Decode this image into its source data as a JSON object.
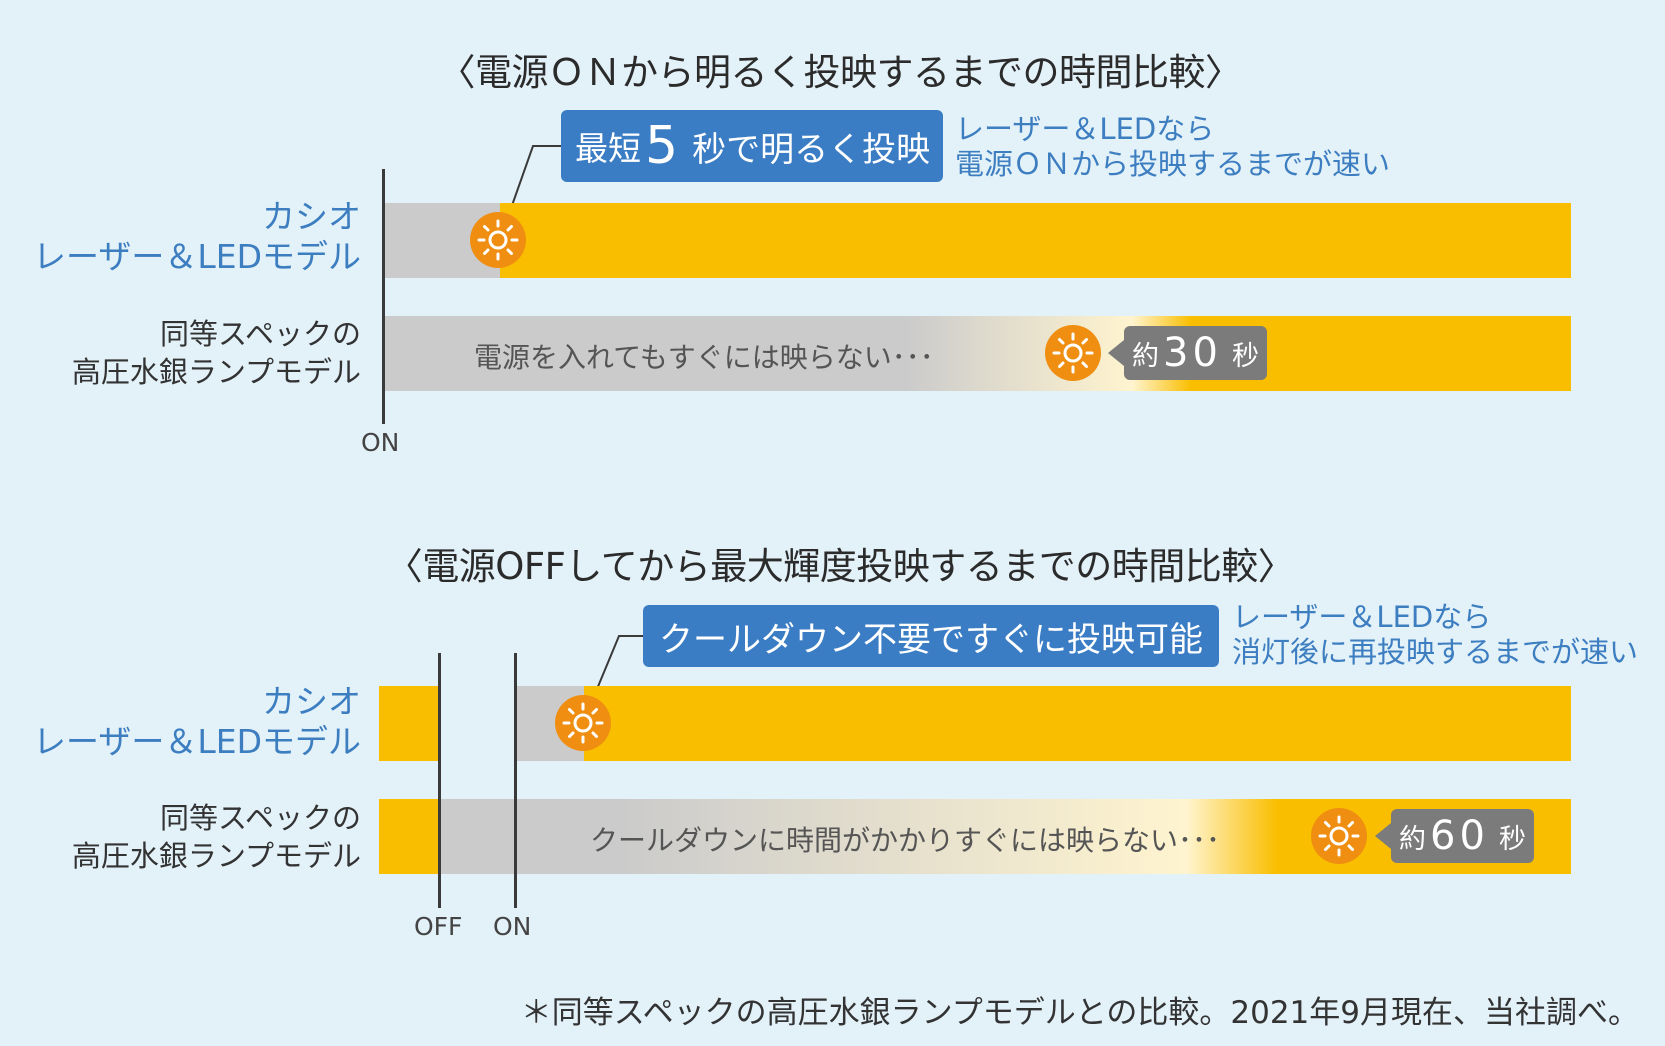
{
  "section1": {
    "title": "〈電源ＯＮから明るく投映するまでの時間比較〉",
    "callout": {
      "prefix": "最短",
      "number": "5",
      "suffix": "秒で明るく投映"
    },
    "note": {
      "line1": "レーザー＆LEDなら",
      "line2": "電源ＯＮから投映するまでが速い"
    },
    "row1_label": {
      "line1": "カシオ",
      "line2": "レーザー＆LEDモデル"
    },
    "row2_label": {
      "line1": "同等スペックの",
      "line2": "高圧水銀ランプモデル"
    },
    "row2_text": "電源を入れてもすぐには映らない･･･",
    "badge": {
      "prefix": "約",
      "number": "30",
      "unit": "秒"
    },
    "axis": {
      "on": "ON"
    }
  },
  "section2": {
    "title": "〈電源OFFしてから最大輝度投映するまでの時間比較〉",
    "callout": "クールダウン不要ですぐに投映可能",
    "note": {
      "line1": "レーザー＆LEDなら",
      "line2": "消灯後に再投映するまでが速い"
    },
    "row1_label": {
      "line1": "カシオ",
      "line2": "レーザー＆LEDモデル"
    },
    "row2_label": {
      "line1": "同等スペックの",
      "line2": "高圧水銀ランプモデル"
    },
    "row2_text": "クールダウンに時間がかかりすぐには映らない･･･",
    "badge": {
      "prefix": "約",
      "number": "60",
      "unit": "秒"
    },
    "axis": {
      "off": "OFF",
      "on": "ON"
    }
  },
  "footnote": "＊同等スペックの高圧水銀ランプモデルとの比較。2021年9月現在、当社調べ。",
  "colors": {
    "background": "#e3f1f9",
    "bright": "#f9be00",
    "dark": "#cbcbcb",
    "callout": "#3b7dc4",
    "sun": "#f08e12",
    "badge": "#7b7b7b"
  }
}
